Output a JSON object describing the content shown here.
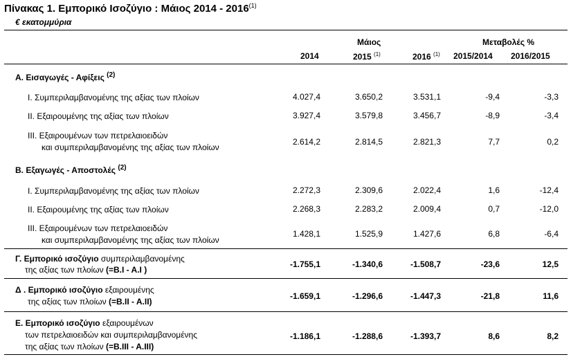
{
  "title": "Πίνακας 1. Εμπορικό Ισοζύγιο :  Μάιος 2014 - 2016",
  "title_note": "(1)",
  "unit": "€ εκατομμύρια",
  "header": {
    "group_month": "Μάιος",
    "group_change": "Μεταβολές %",
    "col_2014": "2014",
    "col_2015": "2015",
    "col_2015_note": "(1)",
    "col_2016": "2016",
    "col_2016_note": "(1)",
    "col_change_1": "2015/2014",
    "col_change_2": "2016/2015"
  },
  "section_a": {
    "title": "Α. Εισαγωγές - Αφίξεις",
    "note": "(2)"
  },
  "section_b": {
    "title": "Β. Εξαγωγές - Αποστολές",
    "note": "(2)"
  },
  "rows": {
    "a1": {
      "label": "Ι.   Συμπεριλαμβανομένης  της αξίας των πλοίων",
      "v2014": "4.027,4",
      "v2015": "3.650,2",
      "v2016": "3.531,1",
      "c1": "-9,4",
      "c2": "-3,3"
    },
    "a2": {
      "label": "ΙΙ.  Εξαιρουμένης  της αξίας των πλοίων",
      "v2014": "3.927,4",
      "v2015": "3.579,8",
      "v2016": "3.456,7",
      "c1": "-8,9",
      "c2": "-3,4"
    },
    "a3": {
      "label1": "ΙΙΙ.  Εξαιρουμένων των πετρελαιοειδών",
      "label2": "και συμπεριλαμβανομένης της αξίας των πλοίων",
      "v2014": "2.614,2",
      "v2015": "2.814,5",
      "v2016": "2.821,3",
      "c1": "7,7",
      "c2": "0,2"
    },
    "b1": {
      "label": "Ι.   Συμπεριλαμβανομένης της αξίας των πλοίων",
      "v2014": "2.272,3",
      "v2015": "2.309,6",
      "v2016": "2.022,4",
      "c1": "1,6",
      "c2": "-12,4"
    },
    "b2": {
      "label": "ΙΙ.  Εξαιρουμένης  της αξίας των πλοίων",
      "v2014": "2.268,3",
      "v2015": "2.283,2",
      "v2016": "2.009,4",
      "c1": "0,7",
      "c2": "-12,0"
    },
    "b3": {
      "label1": "ΙΙΙ.  Εξαιρουμένων των πετρελαιοειδών",
      "label2": "και συμπεριλαμβανομένης της αξίας των πλοίων",
      "v2014": "1.428,1",
      "v2015": "1.525,9",
      "v2016": "1.427,6",
      "c1": "6,8",
      "c2": "-6,4"
    },
    "g": {
      "bold1": "Γ. Εμπορικό ισοζύγιο",
      "rest1": " συμπεριλαμβανομένης",
      "label2": "της αξίας των πλοίων",
      "formula": " (=Β.Ι - Α.Ι )",
      "v2014": "-1.755,1",
      "v2015": "-1.340,6",
      "v2016": "-1.508,7",
      "c1": "-23,6",
      "c2": "12,5"
    },
    "d": {
      "bold1": "Δ . Εμπορικό ισοζύγιο",
      "rest1": " εξαιρουμένης",
      "label2": "της αξίας των πλοίων",
      "formula": " (=Β.ΙΙ - Α.ΙΙ)",
      "v2014": "-1.659,1",
      "v2015": "-1.296,6",
      "v2016": "-1.447,3",
      "c1": "-21,8",
      "c2": "11,6"
    },
    "e": {
      "bold1": "Ε. Εμπορικό ισοζύγιο",
      "rest1": " εξαιρουμένων",
      "label2": "των πετρελαιοειδών και συμπεριλαμβανομένης",
      "label3": "της αξίας των πλοίων",
      "formula": " (=Β.ΙΙΙ - Α.ΙΙΙ)",
      "v2014": "-1.186,1",
      "v2015": "-1.288,6",
      "v2016": "-1.393,7",
      "c1": "8,6",
      "c2": "8,2"
    }
  }
}
